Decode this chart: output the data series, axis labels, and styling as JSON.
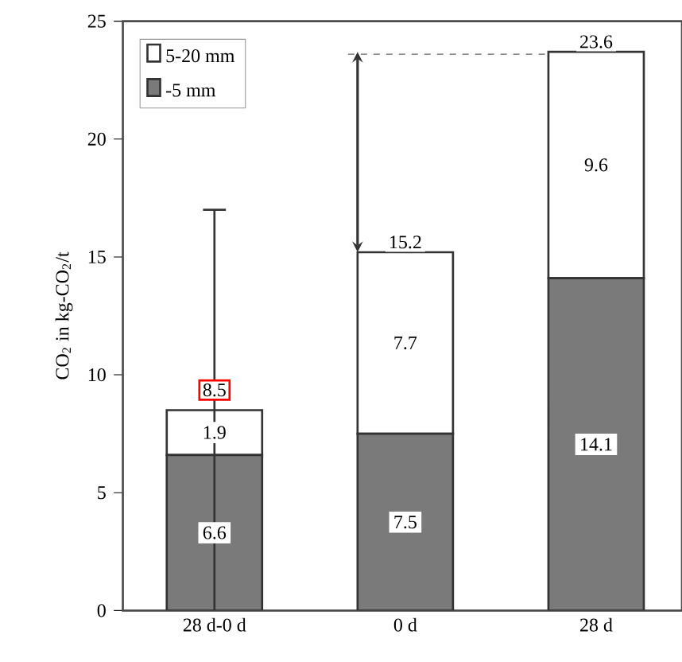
{
  "chart_data": {
    "type": "bar",
    "stacked": true,
    "categories": [
      "28 d-0 d",
      "0 d",
      "28 d"
    ],
    "ylabel": "CO$_{2}$ in kg-CO$_{2}$/t",
    "ylim": [
      0,
      25
    ],
    "yticks": [
      0,
      5,
      10,
      15,
      20,
      25
    ],
    "series": [
      {
        "name": "-5 mm",
        "color": "#7a7a7a",
        "values": [
          6.6,
          7.5,
          14.1
        ]
      },
      {
        "name": "5-20 mm",
        "color": "#ffffff",
        "values": [
          1.9,
          7.7,
          9.6
        ],
        "errors": [
          [
            0,
            17
          ],
          null,
          null
        ]
      }
    ],
    "data_labels": true,
    "totals": [
      "8.5",
      "15.2",
      "23.6"
    ],
    "ref_lines": [
      {
        "axis": "y",
        "value": 23.6,
        "color": "#666666",
        "line_style": "dashed"
      }
    ],
    "legend": "top left",
    "grid": false
  }
}
